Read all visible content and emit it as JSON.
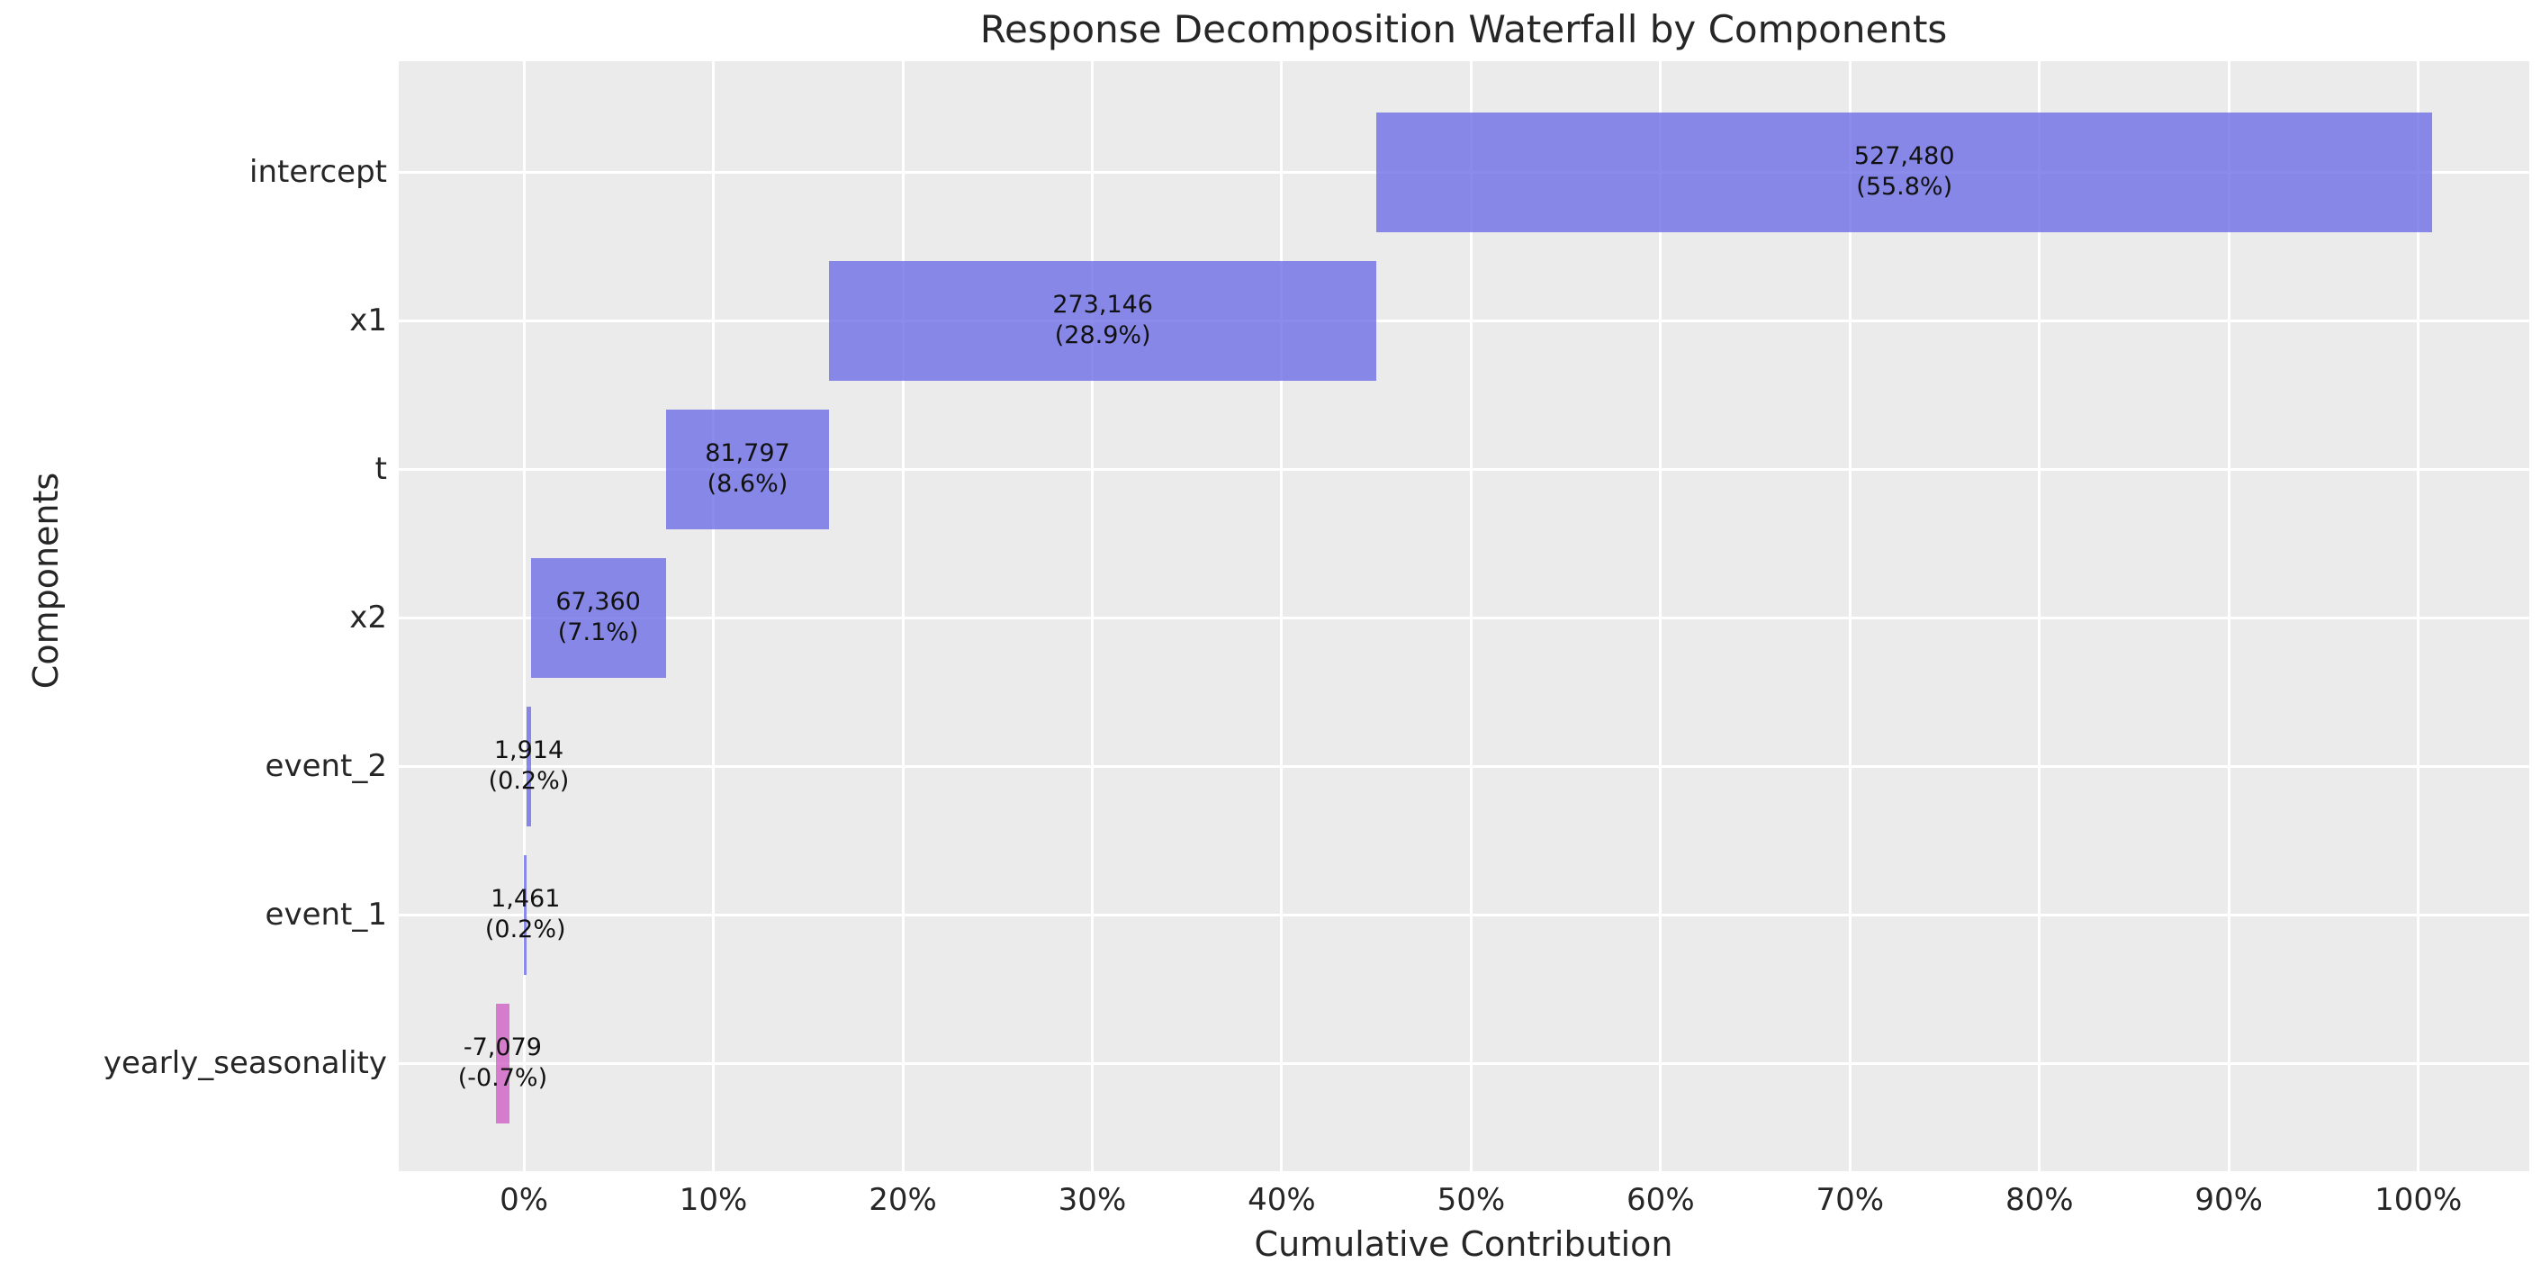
{
  "chart_data": {
    "type": "bar",
    "subtype": "horizontal-waterfall",
    "title": "Response Decomposition Waterfall by Components",
    "xlabel": "Cumulative Contribution",
    "ylabel": "Components",
    "xlim_pct": [
      -6.61,
      105.86
    ],
    "xticks_pct": [
      0,
      10,
      20,
      30,
      40,
      50,
      60,
      70,
      80,
      90,
      100
    ],
    "xtick_labels": [
      "0%",
      "10%",
      "20%",
      "30%",
      "40%",
      "50%",
      "60%",
      "70%",
      "80%",
      "90%",
      "100%"
    ],
    "grid": true,
    "legend": false,
    "plot_bg_color": "#ebebeb",
    "grid_color": "#ffffff",
    "positive_bar_color": "#6e6ee6",
    "negative_bar_color": "#d160c4",
    "bar_alpha": 0.8,
    "bar_label_color": "#111111",
    "components": [
      {
        "name": "intercept",
        "value": 527480,
        "value_label": "527,480",
        "pct_label": "(55.8%)",
        "start_pct": 44.99,
        "end_pct": 100.75,
        "sign": "positive"
      },
      {
        "name": "x1",
        "value": 273146,
        "value_label": "273,146",
        "pct_label": "(28.9%)",
        "start_pct": 16.12,
        "end_pct": 44.99,
        "sign": "positive"
      },
      {
        "name": "t",
        "value": 81797,
        "value_label": "81,797",
        "pct_label": "(8.6%)",
        "start_pct": 7.48,
        "end_pct": 16.12,
        "sign": "positive"
      },
      {
        "name": "x2",
        "value": 67360,
        "value_label": "67,360",
        "pct_label": "(7.1%)",
        "start_pct": 0.36,
        "end_pct": 7.48,
        "sign": "positive"
      },
      {
        "name": "event_2",
        "value": 1914,
        "value_label": "1,914",
        "pct_label": "(0.2%)",
        "start_pct": 0.154,
        "end_pct": 0.356,
        "sign": "positive"
      },
      {
        "name": "event_1",
        "value": 1461,
        "value_label": "1,461",
        "pct_label": "(0.2%)",
        "start_pct": 0.0,
        "end_pct": 0.154,
        "sign": "positive"
      },
      {
        "name": "yearly_seasonality",
        "value": -7079,
        "value_label": "-7,079",
        "pct_label": "(-0.7%)",
        "start_pct": -1.5,
        "end_pct": -0.75,
        "sign": "negative"
      }
    ]
  }
}
